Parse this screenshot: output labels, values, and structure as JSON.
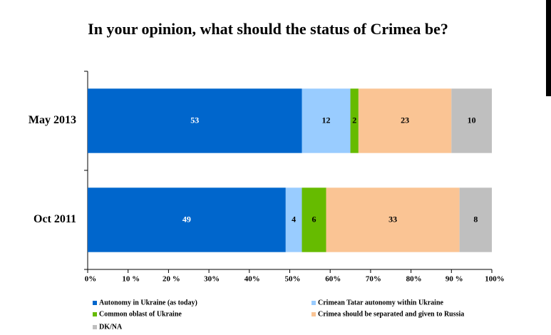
{
  "chart_data": {
    "type": "bar",
    "orientation": "horizontal",
    "stacked": true,
    "title": "In your opinion, what should the status of Crimea be?",
    "categories": [
      "May 2013",
      "Oct 2011"
    ],
    "series": [
      {
        "name": "Autonomy in Ukraine (as today)",
        "color": "#0066cc",
        "values": [
          53,
          49
        ]
      },
      {
        "name": "Crimean Tatar autonomy within Ukraine",
        "color": "#99ccff",
        "values": [
          12,
          4
        ]
      },
      {
        "name": "Common oblast of Ukraine",
        "color": "#66bb00",
        "values": [
          2,
          6
        ]
      },
      {
        "name": "Crimea should be separated and given to Russia",
        "color": "#fac494",
        "values": [
          23,
          33
        ]
      },
      {
        "name": "DK/NA",
        "color": "#bfbfbf",
        "values": [
          10,
          8
        ]
      }
    ],
    "xlim": [
      0,
      100
    ],
    "xticks": [
      {
        "value": 0,
        "label": "0%"
      },
      {
        "value": 10,
        "label": "10 %"
      },
      {
        "value": 20,
        "label": "20 %"
      },
      {
        "value": 30,
        "label": "30%"
      },
      {
        "value": 40,
        "label": "40%"
      },
      {
        "value": 50,
        "label": "50%"
      },
      {
        "value": 60,
        "label": "60%"
      },
      {
        "value": 70,
        "label": "70%"
      },
      {
        "value": 80,
        "label": "80%"
      },
      {
        "value": 90,
        "label": "90 %"
      },
      {
        "value": 100,
        "label": "100%"
      }
    ],
    "grid": false
  }
}
